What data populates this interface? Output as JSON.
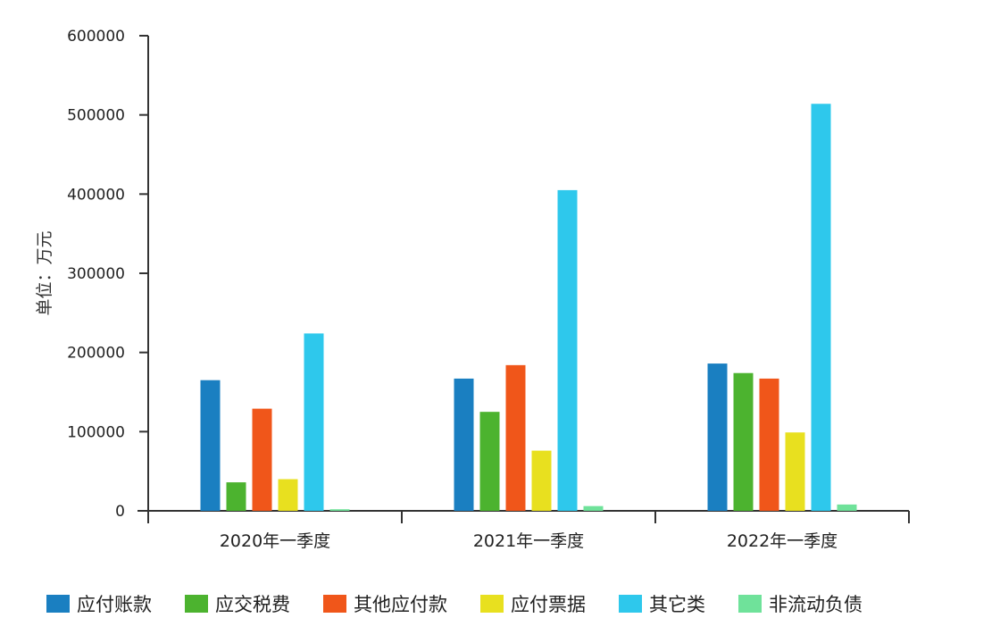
{
  "chart_data": {
    "type": "bar",
    "ylabel": "单位：万元",
    "xlabel": "",
    "ylim": [
      0,
      600000
    ],
    "yticks": [
      "0",
      "100000",
      "200000",
      "300000",
      "400000",
      "500000",
      "600000"
    ],
    "categories": [
      "2020年一季度",
      "2021年一季度",
      "2022年一季度"
    ],
    "series": [
      {
        "name": "应付账款",
        "color": "#1a7fc1",
        "values": [
          165000,
          167000,
          186000
        ]
      },
      {
        "name": "应交税费",
        "color": "#4cb32f",
        "values": [
          36000,
          125000,
          174000
        ]
      },
      {
        "name": "其他应付款",
        "color": "#f0561a",
        "values": [
          129000,
          184000,
          167000
        ]
      },
      {
        "name": "应付票据",
        "color": "#e8e01f",
        "values": [
          40000,
          76000,
          99000
        ]
      },
      {
        "name": "其它类",
        "color": "#2ec8ec",
        "values": [
          224000,
          405000,
          514000
        ]
      },
      {
        "name": "非流动负债",
        "color": "#6fe29a",
        "values": [
          2000,
          6000,
          8000
        ]
      }
    ],
    "grid": false,
    "legend_position": "bottom"
  }
}
